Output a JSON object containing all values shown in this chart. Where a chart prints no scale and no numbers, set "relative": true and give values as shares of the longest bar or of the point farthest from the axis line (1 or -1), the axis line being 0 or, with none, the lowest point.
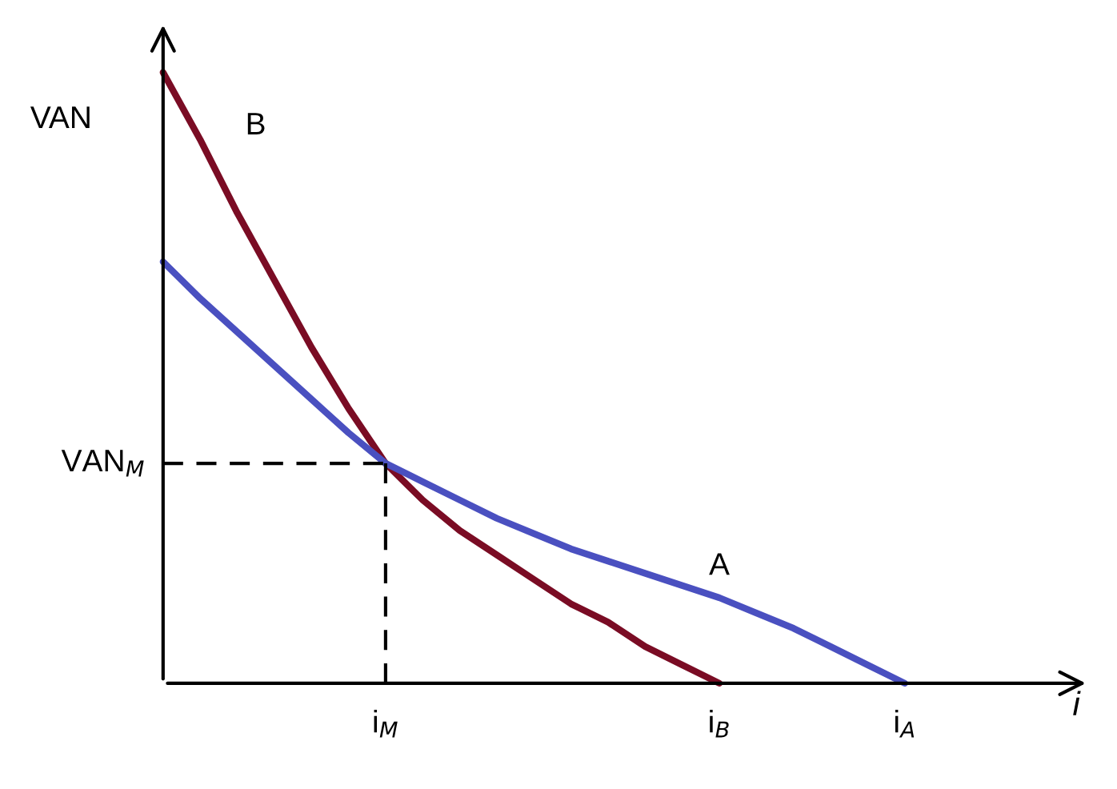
{
  "chart_data": {
    "type": "line",
    "relative": true,
    "xlabel": "i",
    "ylabel": "VAN",
    "categories": [
      null,
      null,
      null,
      null,
      null,
      null,
      "i$_{M}$",
      null,
      null,
      null,
      null,
      null,
      null,
      null,
      null,
      "i$_{B}$",
      null,
      null,
      null,
      null,
      "i$_{A}$"
    ],
    "series": [
      {
        "name": "B",
        "color": "#7a0c24",
        "values": [
          1,
          0.89,
          0.77,
          0.66,
          0.55,
          0.45,
          0.36,
          0.3,
          0.25,
          0.21,
          0.17,
          0.13,
          0.1,
          0.06,
          0.03,
          0,
          null,
          null,
          null,
          null,
          null
        ]
      },
      {
        "name": "A",
        "color": "#4a50c0",
        "values": [
          0.69,
          0.63,
          0.575,
          0.52,
          0.465,
          0.41,
          0.36,
          0.33,
          0.3,
          0.27,
          0.245,
          0.22,
          0.2,
          0.18,
          0.16,
          0.14,
          0.115,
          0.09,
          0.06,
          0.03,
          0
        ]
      }
    ],
    "ref_lines": [
      {
        "axis": "y",
        "value": 0.36,
        "label": "VAN$_{M}$",
        "color": "#000000",
        "line_style": "dashed"
      },
      {
        "axis": "x",
        "value": "i$_{M}$",
        "color": "#000000",
        "line_style": "dashed"
      }
    ],
    "legend": false
  }
}
